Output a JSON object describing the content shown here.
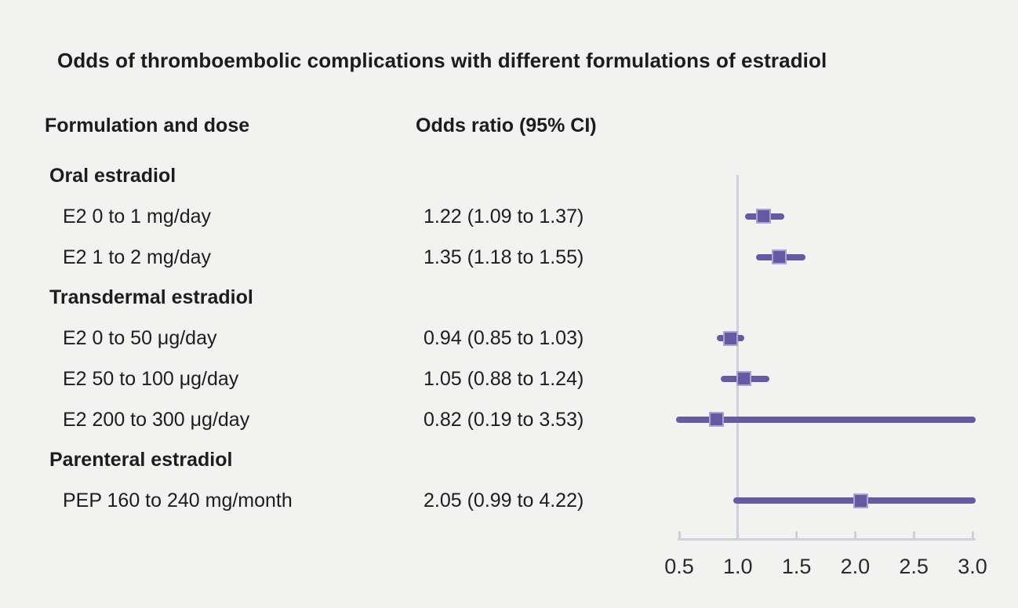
{
  "title": "Odds of thromboembolic complications with different formulations of estradiol",
  "columns": {
    "formulation": "Formulation and dose",
    "odds_ratio": "Odds ratio (95% CI)"
  },
  "colors": {
    "background": "#f2f2f1",
    "text": "#1d1d1d",
    "marker_fill": "#6659a4",
    "marker_edge": "#aba2d3",
    "ci_line": "#665aa4",
    "axis": "#ccd2da"
  },
  "chart_data": {
    "type": "forest",
    "title": "Odds of thromboembolic complications with different formulations of estradiol",
    "xlabel": "Odds ratio",
    "xlim": [
      0.5,
      3.0
    ],
    "reference_line": 1.0,
    "grid": false,
    "ticks": [
      {
        "value": 0.5,
        "label": "0.5"
      },
      {
        "value": 1.0,
        "label": "1.0"
      },
      {
        "value": 1.5,
        "label": "1.5"
      },
      {
        "value": 2.0,
        "label": "2.0"
      },
      {
        "value": 2.5,
        "label": "2.5"
      },
      {
        "value": 3.0,
        "label": "3.0"
      }
    ],
    "rows": [
      {
        "type": "group",
        "label": "Oral estradiol"
      },
      {
        "type": "item",
        "label": "E2 0 to 1 mg/day",
        "or_text": "1.22 (1.09 to 1.37)",
        "est": 1.22,
        "lo": 1.09,
        "hi": 1.37
      },
      {
        "type": "item",
        "label": "E2 1 to 2 mg/day",
        "or_text": "1.35 (1.18 to 1.55)",
        "est": 1.35,
        "lo": 1.18,
        "hi": 1.55
      },
      {
        "type": "group",
        "label": "Transdermal estradiol"
      },
      {
        "type": "item",
        "label": "E2 0 to 50 μg/day",
        "or_text": "0.94 (0.85 to 1.03)",
        "est": 0.94,
        "lo": 0.85,
        "hi": 1.03
      },
      {
        "type": "item",
        "label": "E2 50 to 100 μg/day",
        "or_text": "1.05 (0.88 to 1.24)",
        "est": 1.05,
        "lo": 0.88,
        "hi": 1.24
      },
      {
        "type": "item",
        "label": "E2 200 to 300 μg/day",
        "or_text": "0.82 (0.19 to 3.53)",
        "est": 0.82,
        "lo": 0.19,
        "hi": 3.53
      },
      {
        "type": "group",
        "label": "Parenteral estradiol"
      },
      {
        "type": "item",
        "label": "PEP 160 to 240 mg/month",
        "or_text": "2.05 (0.99 to 4.22)",
        "est": 2.05,
        "lo": 0.99,
        "hi": 4.22
      }
    ]
  }
}
